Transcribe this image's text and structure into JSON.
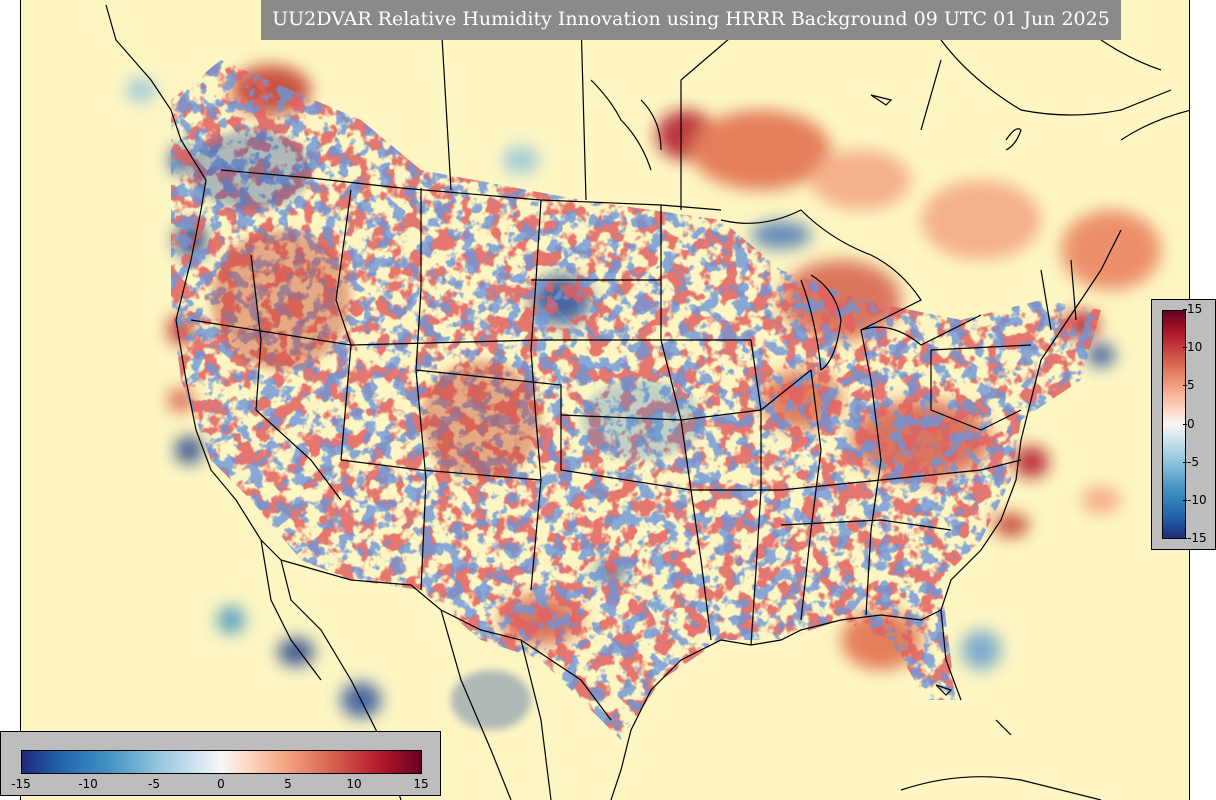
{
  "title": "UU2DVAR Relative Humidity Innovation using HRRR Background 09 UTC 01 Jun 2025",
  "colorbar": {
    "min": -15,
    "max": 15,
    "vertical_ticks": [
      "15",
      "10",
      "5",
      "0",
      "-5",
      "-10",
      "-15"
    ],
    "horizontal_ticks": [
      "-15",
      "-10",
      "-5",
      "0",
      "5",
      "10",
      "15"
    ],
    "colors": {
      "low": "#1f2a7a",
      "mid": "#f7f7f7",
      "high": "#67001f",
      "background": "#fdf6c3"
    }
  }
}
